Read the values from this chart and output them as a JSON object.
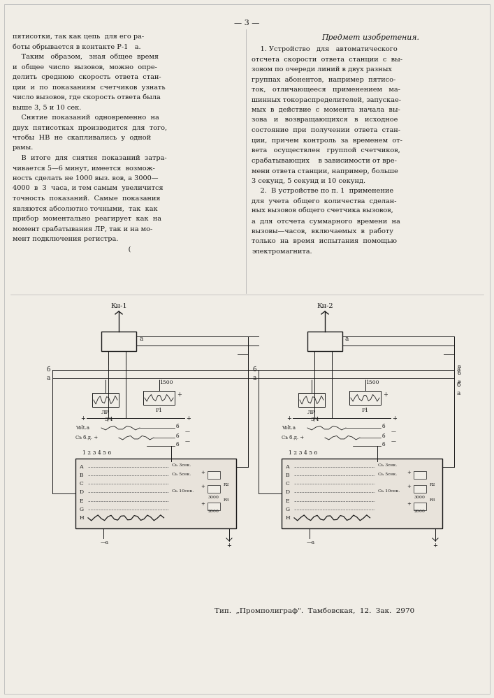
{
  "page_number": "3",
  "bg": "#f0ede6",
  "tc": "#1a1a1a",
  "left_col_lines": [
    "пятисотки, так как цепь  для его ра-",
    "боты обрывается в контакте Р-1   а.",
    "    Таким   образом,   зная  общее  время",
    "и  общее  число  вызовов,  можно  опре-",
    "делить  среднюю  скорость  ответа  стан-",
    "ции  и  по  показаниям  счетчиков  узнать",
    "число вызовов, где скорость ответа была",
    "выше 3, 5 и 10 сек.",
    "    Снятие  показаний  одновременно  на",
    "двух  пятисотках  производится  для  того,",
    "чтобы  НВ  не  скапливались  у  одной",
    "рамы.",
    "    В  итоге  для  снятия  показаний  затра-",
    "чивается 5—6 минут, имеется  возмож-",
    "ность сделать не 1000 выз. вов, а 3000—",
    "4000  в  3  часа, и тем самым  увеличится",
    "точность  показаний.  Самые  показания",
    "являются абсолютно точными,  так  как",
    "прибор  моментально  реагирует  как  на",
    "момент срабатывания ЛР, так и на мо-",
    "мент подключения регистра.",
    "                                                     ("
  ],
  "right_header": "Предмет изобретения.",
  "right_col_lines": [
    "    1. Устройство   для   автоматического",
    "отсчета  скорости  ответа  станции  с  вы-",
    "зовом по очереди линий в двух разных",
    "группах  абонентов,  например  пятисо-",
    "ток,   отличающееся   применением   ма-",
    "шинных токораспределителей, запускае-",
    "мых  в  действие  с  момента  начала  вы-",
    "зова   и   возвращающихся   в   исходное",
    "состояние  при  получении  ответа  стан-",
    "ции,  причем  контроль  за  временем  от-",
    "вета   осуществлен   группой  счетчиков,",
    "срабатывающих    в зависимости от вре-",
    "мени ответа станции, например, больше",
    "3 секунд, 5 секунд и 10 секунд.",
    "    2.  В устройстве по п. 1  применение",
    "для  учета  общего  количества  сделан-",
    "ных вызовов общего счетчика вызовов,",
    "а  для  отсчета  суммарного  времени  на",
    "вызовы—часов,  включаемых  в  работу",
    "только  на  время  испытания  помощью",
    "электромагнита."
  ],
  "footer": "Тип.  „Промполиграф\".  Тамбовская,  12.  Зак.  2970",
  "kn1": "Кн-1",
  "kn2": "Кн-2"
}
